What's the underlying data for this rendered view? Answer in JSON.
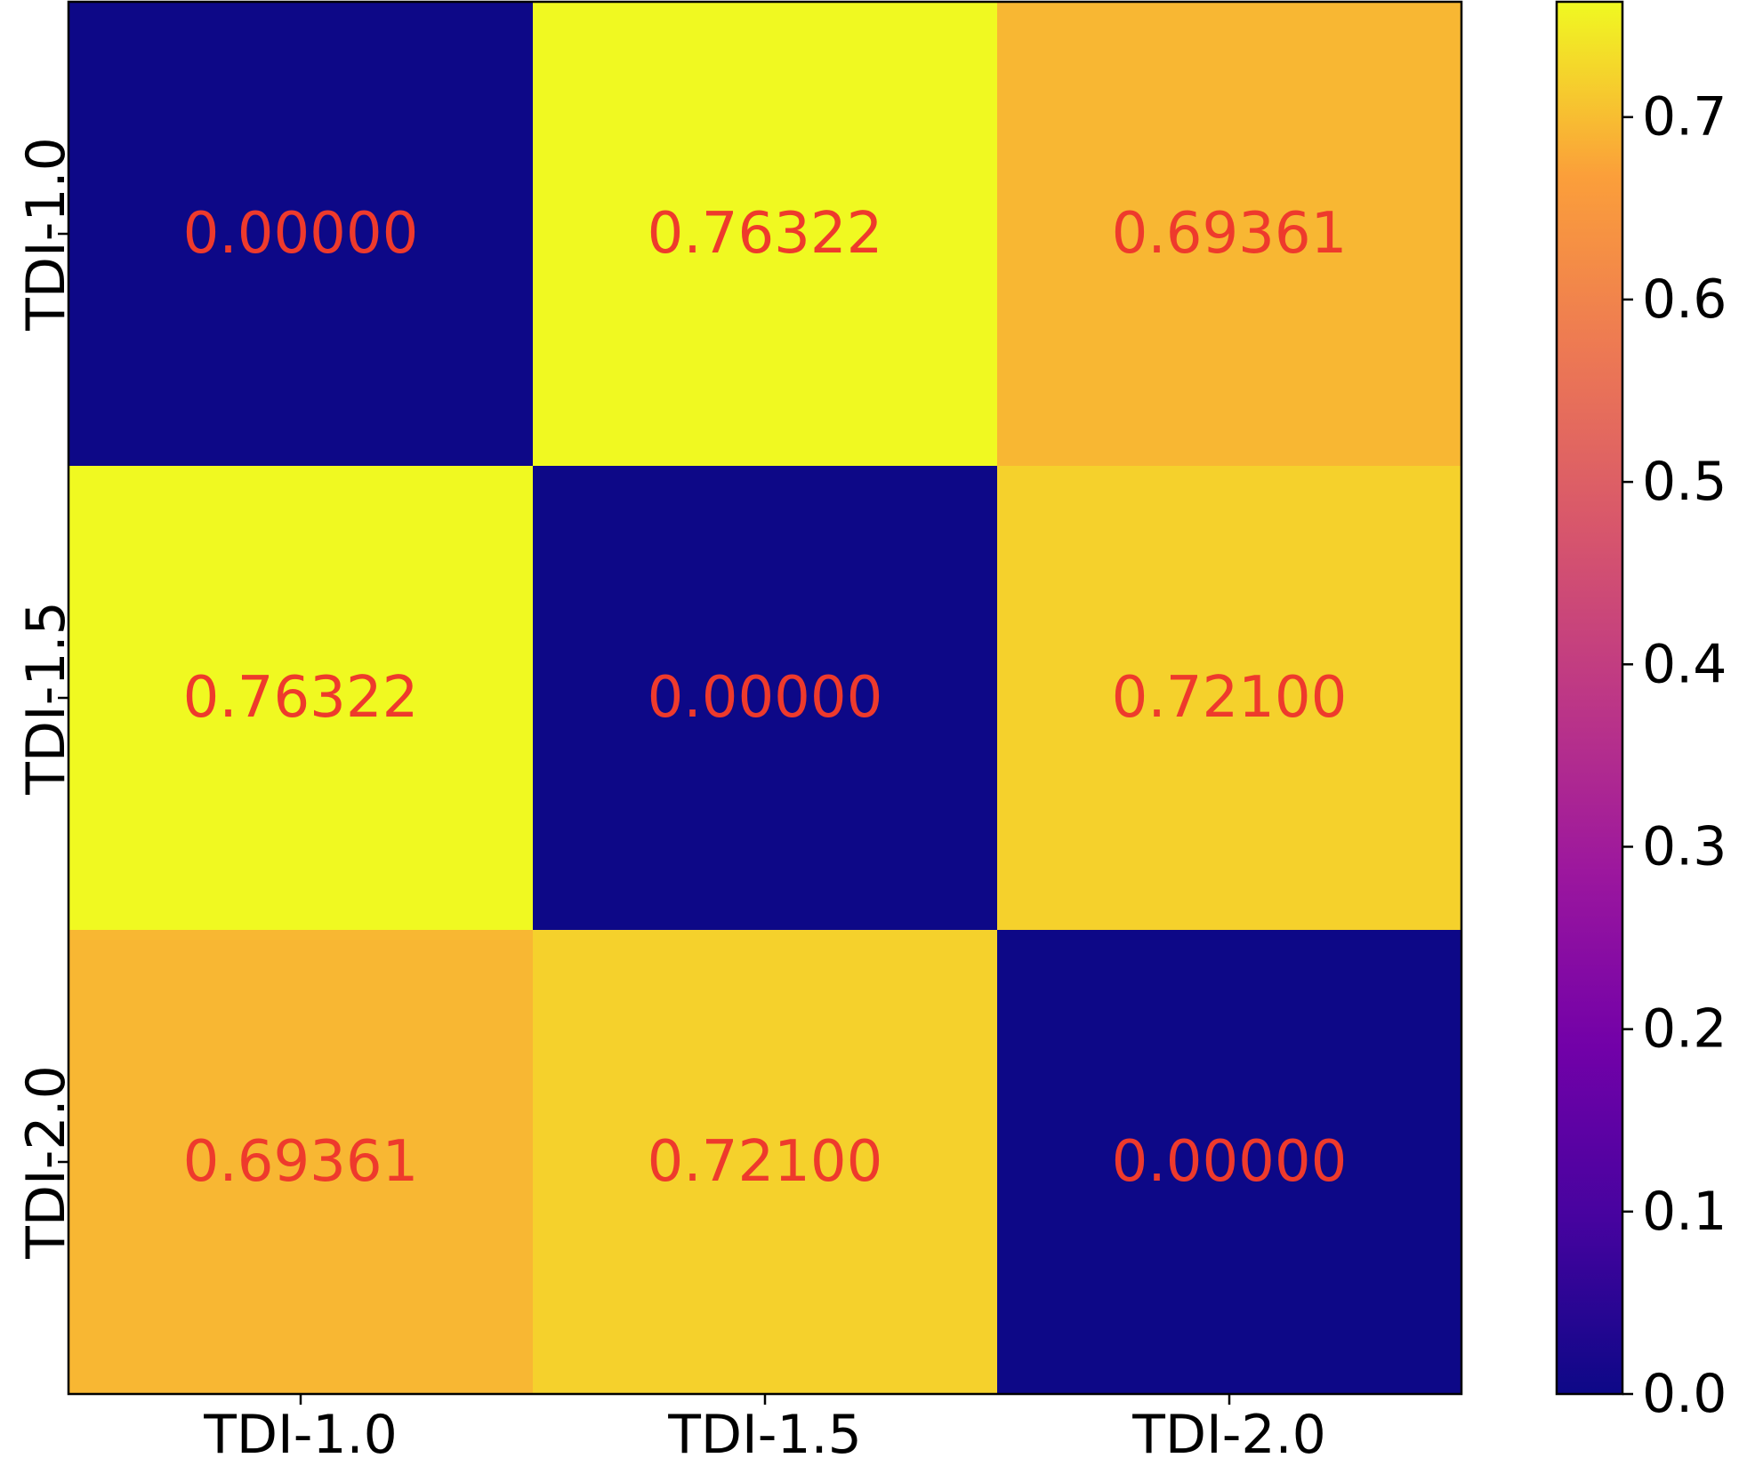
{
  "chart_data": {
    "type": "heatmap",
    "x_categories": [
      "TDI-1.0",
      "TDI-1.5",
      "TDI-2.0"
    ],
    "y_categories": [
      "TDI-1.0",
      "TDI-1.5",
      "TDI-2.0"
    ],
    "values": [
      [
        0.0,
        0.76322,
        0.69361
      ],
      [
        0.76322,
        0.0,
        0.721
      ],
      [
        0.69361,
        0.721,
        0.0
      ]
    ],
    "value_labels": [
      [
        "0.00000",
        "0.76322",
        "0.69361"
      ],
      [
        "0.76322",
        "0.00000",
        "0.72100"
      ],
      [
        "0.69361",
        "0.72100",
        "0.00000"
      ]
    ],
    "title": "",
    "xlabel": "",
    "ylabel": "",
    "colormap": "plasma",
    "value_range": [
      0.0,
      0.76322
    ],
    "colorbar": {
      "placement": "right",
      "ticks": [
        0.0,
        0.1,
        0.2,
        0.3,
        0.4,
        0.5,
        0.6,
        0.7
      ],
      "tick_labels": [
        "0.0",
        "0.1",
        "0.2",
        "0.3",
        "0.4",
        "0.5",
        "0.6",
        "0.7"
      ]
    },
    "annotation_color": "#ee3a2c",
    "grid": false
  }
}
